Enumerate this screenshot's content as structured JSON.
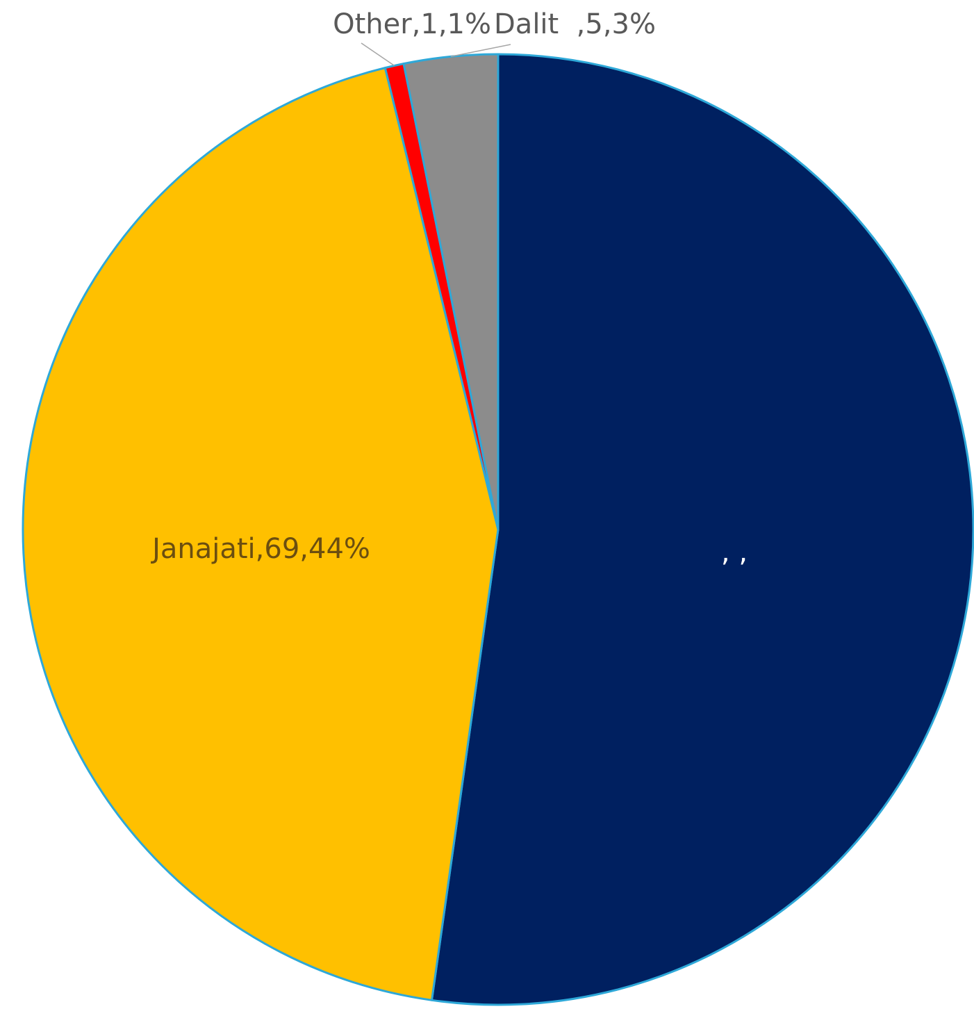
{
  "chart_data": {
    "type": "pie",
    "title": "",
    "slices": [
      {
        "label": "",
        "value": 82,
        "percent_label": "",
        "display": ", ,",
        "color": "#002060"
      },
      {
        "label": "Janajati",
        "value": 69,
        "percent_label": "44%",
        "display": "Janajati,69,44%",
        "color": "#ffc000"
      },
      {
        "label": "Other",
        "value": 1,
        "percent_label": "1%",
        "display": "Other,1,1%",
        "color": "#ff0000"
      },
      {
        "label": "Dalit",
        "value": 5,
        "percent_label": "3%",
        "display": "Dalit  ,5,3%",
        "color": "#8c8c8c"
      }
    ],
    "slice_border_color": "#2ea8d8",
    "legend": "none"
  }
}
